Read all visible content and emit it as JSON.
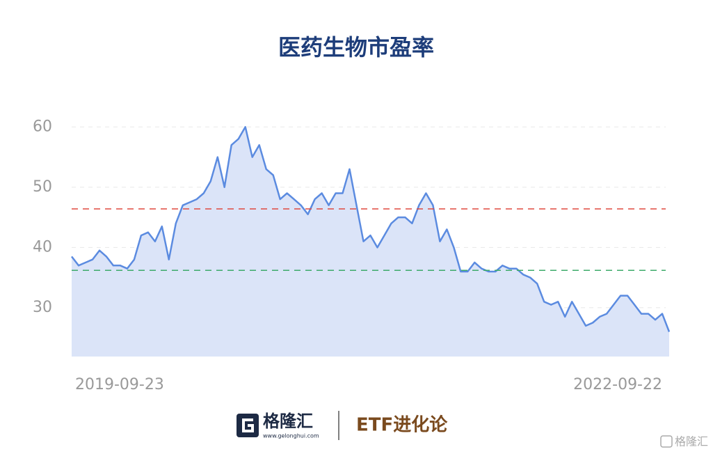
{
  "chart_data": {
    "type": "area",
    "title": "医药生物市盈率",
    "categories": [
      "2019-09-23",
      null,
      null,
      null,
      null,
      null,
      null,
      null,
      null,
      null,
      null,
      null,
      null,
      null,
      null,
      null,
      null,
      null,
      null,
      null,
      null,
      null,
      null,
      null,
      null,
      null,
      null,
      null,
      null,
      null,
      null,
      null,
      null,
      null,
      null,
      null,
      null,
      null,
      null,
      null,
      null,
      null,
      null,
      null,
      null,
      null,
      null,
      null,
      null,
      null,
      null,
      null,
      null,
      null,
      null,
      null,
      null,
      null,
      null,
      null,
      null,
      null,
      null,
      null,
      null,
      null,
      null,
      null,
      null,
      null,
      null,
      null,
      null,
      null,
      null,
      null,
      null,
      null,
      null,
      null,
      null,
      null,
      null,
      null,
      null,
      null,
      "2022-09-22"
    ],
    "values": [
      38.5,
      37,
      37.5,
      38,
      39.5,
      38.5,
      37,
      37,
      36.5,
      38,
      42,
      42.5,
      41,
      43.5,
      38,
      44,
      47,
      47.5,
      48,
      49,
      51,
      55,
      50,
      57,
      58,
      60,
      55,
      57,
      53,
      52,
      48,
      49,
      48,
      47,
      45.5,
      48,
      49,
      47,
      49,
      49,
      53,
      47,
      41,
      42,
      40,
      42,
      44,
      45,
      45,
      44,
      47,
      49,
      47,
      41,
      43,
      40,
      36,
      36,
      37.5,
      36.5,
      36,
      36,
      37,
      36.5,
      36.5,
      35.5,
      35,
      34,
      31,
      30.5,
      31,
      28.5,
      31,
      29,
      27,
      27.5,
      28.5,
      29,
      30.5,
      32,
      32,
      30.5,
      29,
      29,
      28,
      29,
      26
    ],
    "color": "#5b8be0",
    "area_color": "#dbe4f8",
    "ylim": [
      21.9,
      62
    ],
    "yticks": [
      30,
      40,
      50,
      60
    ],
    "grid": true,
    "reference_lines": [
      {
        "value": 46.4,
        "color": "#e04a3f"
      },
      {
        "value": 36.2,
        "color": "#3daa6a"
      }
    ]
  },
  "footer": {
    "brand": "格隆汇",
    "url": "www.gelonghui.com",
    "column": "ETF进化论",
    "watermark": "格隆汇"
  }
}
